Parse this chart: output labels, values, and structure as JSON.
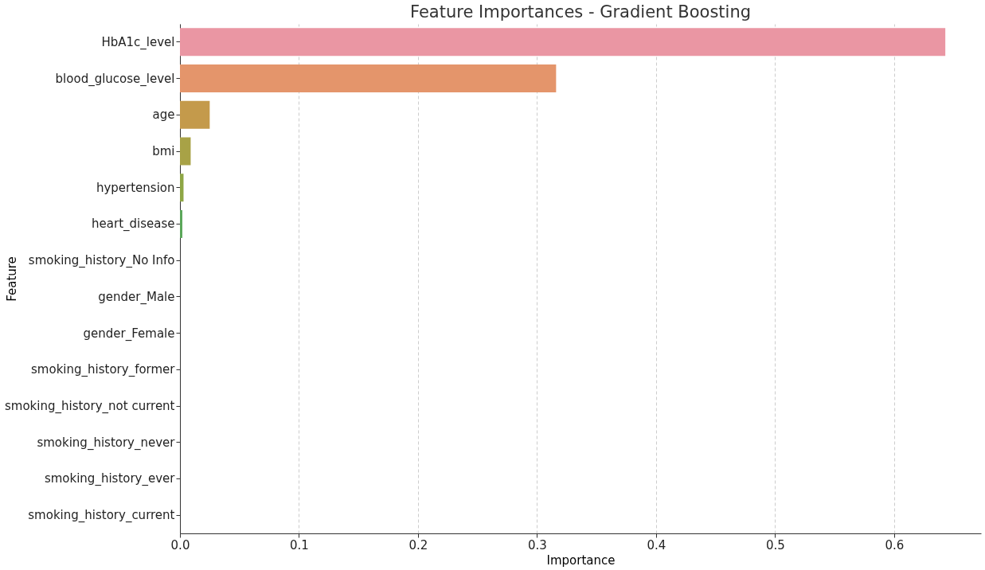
{
  "chart_data": {
    "type": "bar",
    "orientation": "horizontal",
    "title": "Feature Importances - Gradient Boosting",
    "xlabel": "Importance",
    "ylabel": "Feature",
    "categories": [
      "HbA1c_level",
      "blood_glucose_level",
      "age",
      "bmi",
      "hypertension",
      "heart_disease",
      "smoking_history_No Info",
      "gender_Male",
      "gender_Female",
      "smoking_history_former",
      "smoking_history_not current",
      "smoking_history_never",
      "smoking_history_ever",
      "smoking_history_current"
    ],
    "values": [
      0.643,
      0.316,
      0.025,
      0.009,
      0.003,
      0.002,
      0,
      0,
      0,
      0,
      0,
      0,
      0,
      0
    ],
    "colors": [
      "#ea96a3",
      "#e4956b",
      "#c49a4b",
      "#a8a246",
      "#8ea645",
      "#5ba75a",
      "#4aa58c",
      "#4ba3a2",
      "#4ea2b4",
      "#5b9fd0",
      "#9b96df",
      "#c58cd9",
      "#e08bc4",
      "#e98fb0"
    ],
    "xlim": [
      0,
      0.673
    ],
    "xticks": [
      {
        "value": 0,
        "label": "0.0"
      },
      0.1,
      0.2,
      0.3,
      0.4,
      0.5,
      0.6
    ],
    "grid": "x",
    "legend": false
  }
}
